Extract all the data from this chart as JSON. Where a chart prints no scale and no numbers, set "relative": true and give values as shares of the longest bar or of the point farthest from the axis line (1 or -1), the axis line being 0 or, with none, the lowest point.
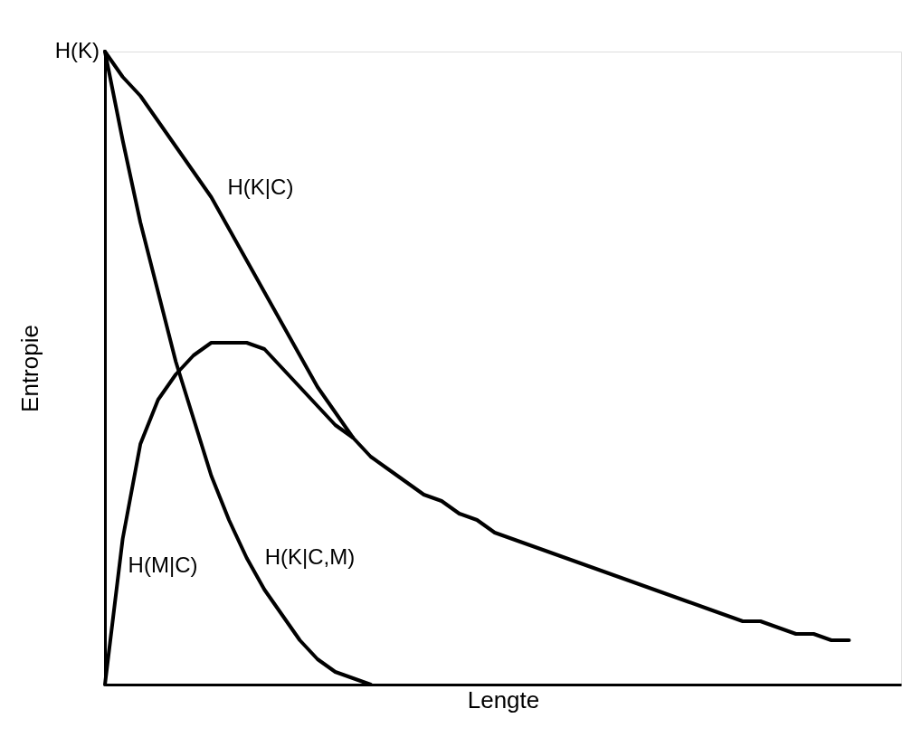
{
  "chart_data": {
    "type": "line",
    "xlabel": "Lengte",
    "ylabel": "Entropie",
    "relative": true,
    "grid": false,
    "legend": false,
    "line_style": "solid",
    "categories": [
      null,
      null,
      null,
      null,
      null,
      null,
      null,
      null,
      null,
      null,
      null,
      null,
      null,
      null,
      null,
      null,
      null,
      null,
      null,
      null,
      null,
      null,
      null,
      null,
      null,
      null,
      null,
      null,
      null,
      null,
      null,
      null,
      null,
      null,
      null,
      null,
      null,
      null,
      null,
      null,
      null,
      null,
      null
    ],
    "series": [
      {
        "name": "H(K|C)",
        "color": "#000000",
        "values": [
          1.0,
          0.96,
          0.93,
          0.89,
          0.85,
          0.81,
          0.77,
          0.72,
          0.67,
          0.62,
          0.57,
          0.52,
          0.47,
          0.43,
          0.39,
          0.36,
          0.34,
          0.32,
          0.3,
          0.29,
          0.27,
          0.26,
          0.24,
          0.23,
          0.22,
          0.21,
          0.2,
          0.19,
          0.18,
          0.17,
          0.16,
          0.15,
          0.14,
          0.13,
          0.12,
          0.11,
          0.1,
          0.1,
          0.09,
          0.08,
          0.08,
          0.07,
          0.07
        ]
      },
      {
        "name": "H(K|C,M)",
        "color": "#000000",
        "values": [
          1.0,
          0.86,
          0.73,
          0.62,
          0.51,
          0.42,
          0.33,
          0.26,
          0.2,
          0.15,
          0.11,
          0.07,
          0.04,
          0.02,
          0.01,
          0.0,
          null,
          null,
          null,
          null,
          null,
          null,
          null,
          null,
          null,
          null,
          null,
          null,
          null,
          null,
          null,
          null,
          null,
          null,
          null,
          null,
          null,
          null,
          null,
          null,
          null,
          null,
          null
        ]
      },
      {
        "name": "H(M|C)",
        "color": "#000000",
        "values": [
          0.0,
          0.23,
          0.38,
          0.45,
          0.49,
          0.52,
          0.54,
          0.54,
          0.54,
          0.53,
          0.5,
          0.47,
          0.44,
          0.41,
          0.39,
          null,
          null,
          null,
          null,
          null,
          null,
          null,
          null,
          null,
          null,
          null,
          null,
          null,
          null,
          null,
          null,
          null,
          null,
          null,
          null,
          null,
          null,
          null,
          null,
          null,
          null,
          null,
          null
        ]
      }
    ],
    "annotations": [
      "H(K)"
    ]
  }
}
